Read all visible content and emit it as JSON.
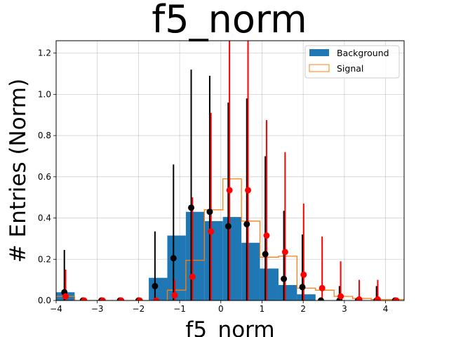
{
  "chart_data": {
    "type": "histogram",
    "title": "f5_norm",
    "xlabel": "f5_norm",
    "ylabel": "# Entries (Norm)",
    "xlim": [
      -4.0,
      4.45
    ],
    "ylim": [
      0,
      1.26
    ],
    "xticks": [
      -4,
      -3,
      -2,
      -1,
      0,
      1,
      2,
      3,
      4
    ],
    "yticks": [
      0.0,
      0.2,
      0.4,
      0.6,
      0.8,
      1.0,
      1.2
    ],
    "grid": true,
    "legend_position": "top-right",
    "bin_edges": [
      -4.0,
      -3.55,
      -3.1,
      -2.65,
      -2.2,
      -1.75,
      -1.3,
      -0.85,
      -0.4,
      0.05,
      0.5,
      0.95,
      1.4,
      1.85,
      2.3,
      2.75,
      3.2,
      3.65,
      4.1,
      4.55
    ],
    "series": [
      {
        "name": "Background",
        "style": "filled",
        "color": "#1f77b4",
        "values": [
          0.04,
          0.0,
          0.0,
          0.0,
          0.0,
          0.11,
          0.315,
          0.43,
          0.385,
          0.405,
          0.28,
          0.155,
          0.075,
          0.03,
          0.0,
          0.0,
          0.0,
          0.0,
          0.0
        ],
        "markers": {
          "color": "#000000",
          "x": [
            -3.8,
            -3.35,
            -2.9,
            -2.45,
            -2.0,
            -1.6,
            -1.15,
            -0.72,
            -0.27,
            0.18,
            0.63,
            1.08,
            1.53,
            1.98,
            2.43,
            2.88,
            3.33,
            3.78,
            4.23
          ],
          "y": [
            0.04,
            0.0,
            0.0,
            0.0,
            0.0,
            0.07,
            0.205,
            0.45,
            0.43,
            0.36,
            0.37,
            0.225,
            0.105,
            0.065,
            0.0,
            0.0,
            0.0,
            0.0,
            0.0
          ],
          "err_high": [
            0.245,
            0.0,
            0.0,
            0.0,
            0.0,
            0.335,
            0.66,
            1.12,
            1.09,
            0.96,
            0.98,
            0.7,
            0.435,
            0.32,
            0.0,
            0.07,
            0.0,
            0.07,
            0.0
          ]
        }
      },
      {
        "name": "Signal",
        "style": "step",
        "color": "#ff7f0e",
        "values": [
          0.02,
          0.0,
          0.0,
          0.0,
          0.0,
          0.0,
          0.05,
          0.195,
          0.44,
          0.59,
          0.385,
          0.21,
          0.215,
          0.06,
          0.05,
          0.02,
          0.01,
          0.005,
          0.005
        ],
        "markers": {
          "color": "#ff0000",
          "x": [
            -3.77,
            -3.32,
            -2.87,
            -2.42,
            -1.97,
            -1.57,
            -1.12,
            -0.69,
            -0.24,
            0.21,
            0.66,
            1.11,
            1.56,
            2.01,
            2.46,
            2.91,
            3.36,
            3.81,
            4.26
          ],
          "y": [
            0.02,
            0.0,
            0.0,
            0.0,
            0.0,
            0.0,
            0.025,
            0.115,
            0.335,
            0.535,
            0.535,
            0.315,
            0.235,
            0.125,
            0.06,
            0.02,
            0.005,
            0.005,
            0.0
          ],
          "err_high": [
            0.15,
            0.0,
            0.0,
            0.0,
            0.0,
            0.0,
            0.1,
            0.5,
            0.91,
            1.26,
            1.26,
            0.875,
            0.72,
            0.47,
            0.31,
            0.19,
            0.1,
            0.1,
            0.0
          ]
        }
      }
    ]
  }
}
